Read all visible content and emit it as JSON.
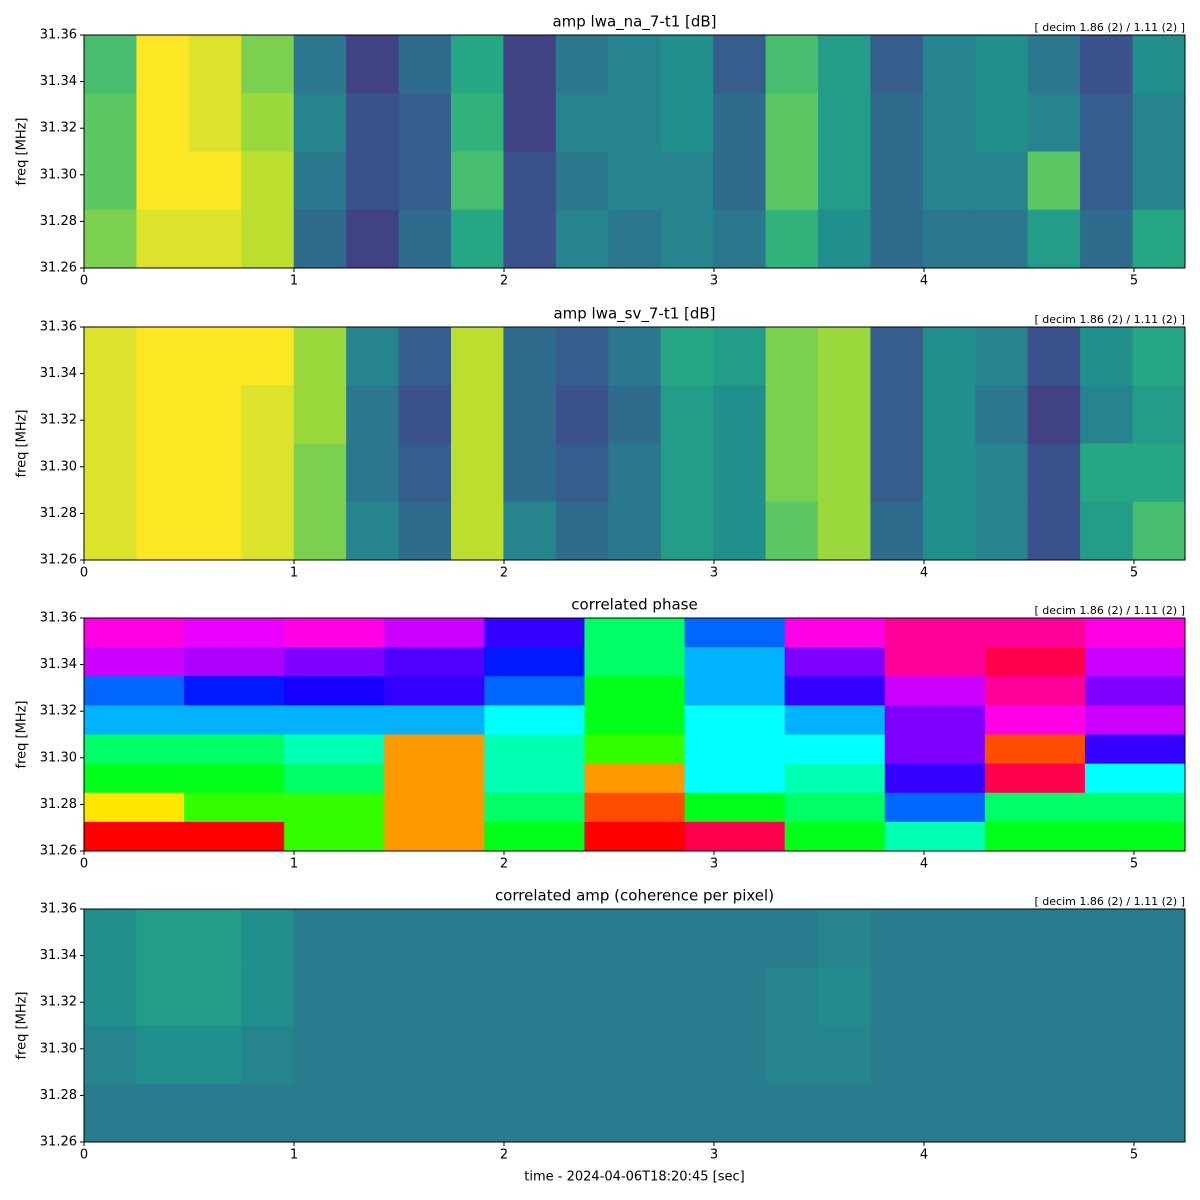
{
  "chart_data": [
    {
      "type": "heatmap",
      "title": "amp lwa_na_7-t1 [dB]",
      "annotation": "[ decim 1.86 (2) / 1.11 (2) ]",
      "ylabel": "freq [MHz]",
      "colormap": "viridis",
      "clim": [
        0,
        1
      ],
      "xlim": [
        0,
        5.243
      ],
      "ylim": [
        31.26,
        31.36
      ],
      "xticks": [
        0,
        1,
        2,
        3,
        4,
        5
      ],
      "yticks": [
        31.26,
        31.28,
        {
          "value": 31.3,
          "label": "31.30"
        },
        31.32,
        31.34,
        31.36
      ],
      "z": [
        [
          0.7,
          1,
          0.95,
          0.8,
          0.4,
          0.2,
          0.35,
          0.6,
          0.2,
          0.4,
          0.45,
          0.5,
          0.3,
          0.7,
          0.55,
          0.3,
          0.45,
          0.5,
          0.4,
          0.25,
          0.5
        ],
        [
          0.75,
          1,
          0.95,
          0.85,
          0.45,
          0.25,
          0.3,
          0.65,
          0.2,
          0.45,
          0.45,
          0.5,
          0.35,
          0.75,
          0.55,
          0.35,
          0.45,
          0.5,
          0.45,
          0.3,
          0.45
        ],
        [
          0.75,
          1,
          1,
          0.9,
          0.4,
          0.25,
          0.3,
          0.7,
          0.25,
          0.4,
          0.45,
          0.45,
          0.35,
          0.75,
          0.55,
          0.35,
          0.45,
          0.45,
          0.75,
          0.3,
          0.45
        ],
        [
          0.8,
          0.95,
          0.95,
          0.9,
          0.35,
          0.2,
          0.35,
          0.6,
          0.25,
          0.45,
          0.4,
          0.45,
          0.4,
          0.65,
          0.5,
          0.35,
          0.4,
          0.4,
          0.55,
          0.35,
          0.6
        ]
      ]
    },
    {
      "type": "heatmap",
      "title": "amp lwa_sv_7-t1 [dB]",
      "annotation": "[ decim 1.86 (2) / 1.11 (2) ]",
      "ylabel": "freq [MHz]",
      "colormap": "viridis",
      "clim": [
        0,
        1
      ],
      "xlim": [
        0,
        5.243
      ],
      "ylim": [
        31.26,
        31.36
      ],
      "xticks": [
        0,
        1,
        2,
        3,
        4,
        5
      ],
      "yticks": [
        31.26,
        31.28,
        {
          "value": 31.3,
          "label": "31.30"
        },
        31.32,
        31.34,
        31.36
      ],
      "z": [
        [
          0.95,
          1,
          1,
          1,
          0.85,
          0.45,
          0.3,
          0.9,
          0.35,
          0.3,
          0.4,
          0.6,
          0.55,
          0.8,
          0.85,
          0.3,
          0.5,
          0.45,
          0.25,
          0.5,
          0.6
        ],
        [
          0.95,
          1,
          1,
          0.95,
          0.85,
          0.4,
          0.25,
          0.9,
          0.35,
          0.25,
          0.35,
          0.55,
          0.5,
          0.8,
          0.85,
          0.3,
          0.5,
          0.4,
          0.2,
          0.45,
          0.55
        ],
        [
          0.95,
          1,
          1,
          0.95,
          0.8,
          0.4,
          0.3,
          0.9,
          0.35,
          0.3,
          0.4,
          0.55,
          0.5,
          0.8,
          0.85,
          0.3,
          0.5,
          0.45,
          0.25,
          0.6,
          0.6
        ],
        [
          0.95,
          1,
          1,
          0.95,
          0.8,
          0.45,
          0.35,
          0.9,
          0.45,
          0.35,
          0.4,
          0.55,
          0.5,
          0.75,
          0.85,
          0.35,
          0.5,
          0.45,
          0.25,
          0.55,
          0.7
        ]
      ]
    },
    {
      "type": "heatmap",
      "title": "correlated phase",
      "annotation": "[ decim 1.86 (2) / 1.11 (2) ]",
      "ylabel": "freq [MHz]",
      "colormap": "hsv",
      "clim": [
        0,
        1
      ],
      "xlim": [
        0,
        5.243
      ],
      "ylim": [
        31.26,
        31.36
      ],
      "xticks": [
        0,
        1,
        2,
        3,
        4,
        5
      ],
      "yticks": [
        31.26,
        31.28,
        {
          "value": 31.3,
          "label": "31.30"
        },
        31.32,
        31.34,
        31.36
      ],
      "z": [
        [
          0.85,
          0.82,
          0.85,
          0.8,
          0.7,
          0.4,
          0.6,
          0.85,
          0.9,
          0.9,
          0.85
        ],
        [
          0.8,
          0.78,
          0.75,
          0.72,
          0.65,
          0.4,
          0.55,
          0.75,
          0.9,
          0.95,
          0.8
        ],
        [
          0.6,
          0.65,
          0.68,
          0.7,
          0.6,
          0.35,
          0.55,
          0.7,
          0.8,
          0.9,
          0.75
        ],
        [
          0.55,
          0.55,
          0.55,
          0.55,
          0.5,
          0.35,
          0.5,
          0.55,
          0.75,
          0.85,
          0.8
        ],
        [
          0.4,
          0.4,
          0.45,
          0.1,
          0.45,
          0.3,
          0.5,
          0.5,
          0.75,
          0.05,
          0.7
        ],
        [
          0.35,
          0.35,
          0.4,
          0.1,
          0.45,
          0.1,
          0.5,
          0.45,
          0.7,
          0.95,
          0.5
        ],
        [
          0.15,
          0.3,
          0.3,
          0.1,
          0.4,
          0.05,
          0.35,
          0.4,
          0.6,
          0.4,
          0.4
        ],
        [
          0,
          0,
          0.3,
          0.1,
          0.35,
          0,
          0.95,
          0.35,
          0.45,
          0.35,
          0.35
        ]
      ]
    },
    {
      "type": "heatmap",
      "title": "correlated amp (coherence per pixel)",
      "annotation": "[ decim 1.86 (2) / 1.11 (2) ]",
      "ylabel": "freq [MHz]",
      "xlabel": "time - 2024-04-06T18:20:45 [sec]",
      "colormap": "viridis",
      "clim": [
        0,
        1
      ],
      "xlim": [
        0,
        5.243
      ],
      "ylim": [
        31.26,
        31.36
      ],
      "xticks": [
        0,
        1,
        2,
        3,
        4,
        5
      ],
      "yticks": [
        31.26,
        31.28,
        {
          "value": 31.3,
          "label": "31.30"
        },
        31.32,
        31.34,
        31.36
      ],
      "z": [
        [
          0.5,
          0.55,
          0.55,
          0.5,
          0.42,
          0.42,
          0.42,
          0.42,
          0.42,
          0.42,
          0.42,
          0.42,
          0.42,
          0.42,
          0.45,
          0.42,
          0.42,
          0.42,
          0.42,
          0.42,
          0.42
        ],
        [
          0.5,
          0.55,
          0.55,
          0.5,
          0.42,
          0.42,
          0.42,
          0.42,
          0.42,
          0.42,
          0.42,
          0.42,
          0.42,
          0.45,
          0.48,
          0.42,
          0.42,
          0.42,
          0.42,
          0.42,
          0.42
        ],
        [
          0.45,
          0.5,
          0.5,
          0.45,
          0.42,
          0.42,
          0.42,
          0.42,
          0.42,
          0.42,
          0.42,
          0.42,
          0.42,
          0.45,
          0.45,
          0.42,
          0.42,
          0.42,
          0.42,
          0.42,
          0.42
        ],
        [
          0.42,
          0.42,
          0.42,
          0.42,
          0.42,
          0.42,
          0.42,
          0.42,
          0.42,
          0.42,
          0.42,
          0.42,
          0.42,
          0.42,
          0.42,
          0.42,
          0.42,
          0.42,
          0.42,
          0.42,
          0.42
        ]
      ]
    }
  ]
}
